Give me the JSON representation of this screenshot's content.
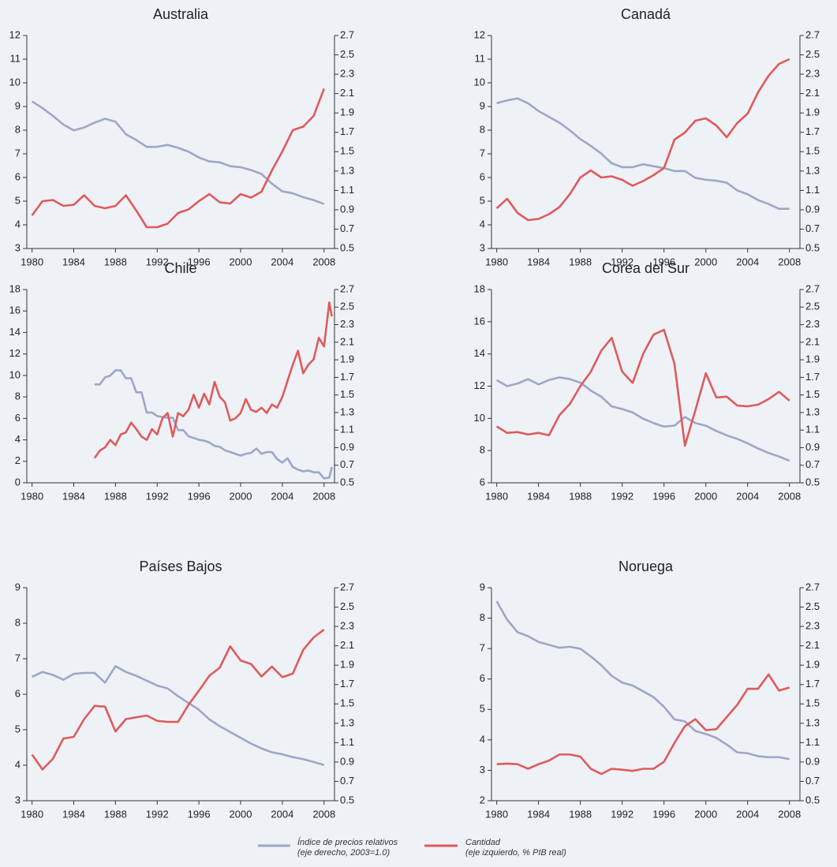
{
  "chart_data": [
    {
      "type": "line",
      "title": "Australia",
      "x": [
        1980,
        1981,
        1982,
        1983,
        1984,
        1985,
        1986,
        1987,
        1988,
        1989,
        1990,
        1991,
        1992,
        1993,
        1994,
        1995,
        1996,
        1997,
        1998,
        1999,
        2000,
        2001,
        2002,
        2003,
        2004,
        2005,
        2006,
        2007,
        2008
      ],
      "xlim": [
        1979.5,
        2009
      ],
      "xticks": [
        1980,
        1984,
        1988,
        1992,
        1996,
        2000,
        2004,
        2008
      ],
      "ylim": [
        3,
        12
      ],
      "yticks": [
        3,
        4,
        5,
        6,
        7,
        8,
        9,
        10,
        11,
        12
      ],
      "y2lim": [
        0.5,
        2.7
      ],
      "y2ticks": [
        0.5,
        0.7,
        0.9,
        1.1,
        1.3,
        1.5,
        1.7,
        1.9,
        2.1,
        2.3,
        2.5,
        2.7
      ],
      "series": [
        {
          "color": "#9ea6c6",
          "axis": "y2",
          "values": [
            2.02,
            1.95,
            1.87,
            1.78,
            1.72,
            1.75,
            1.8,
            1.84,
            1.81,
            1.68,
            1.62,
            1.55,
            1.55,
            1.57,
            1.54,
            1.5,
            1.44,
            1.4,
            1.39,
            1.35,
            1.34,
            1.31,
            1.27,
            1.17,
            1.09,
            1.07,
            1.03,
            1.0,
            0.96
          ]
        },
        {
          "color": "#e05a5c",
          "values": [
            4.4,
            5.0,
            5.05,
            4.8,
            4.85,
            5.25,
            4.8,
            4.7,
            4.8,
            5.25,
            4.6,
            3.9,
            3.9,
            4.05,
            4.5,
            4.65,
            5.0,
            5.3,
            4.95,
            4.9,
            5.3,
            5.15,
            5.4,
            6.3,
            7.1,
            8.0,
            8.15,
            8.6,
            9.75
          ]
        }
      ]
    },
    {
      "type": "line",
      "title": "Canadá",
      "x": [
        1980,
        1981,
        1982,
        1983,
        1984,
        1985,
        1986,
        1987,
        1988,
        1989,
        1990,
        1991,
        1992,
        1993,
        1994,
        1995,
        1996,
        1997,
        1998,
        1999,
        2000,
        2001,
        2002,
        2003,
        2004,
        2005,
        2006,
        2007,
        2008
      ],
      "xlim": [
        1979.5,
        2009
      ],
      "xticks": [
        1980,
        1984,
        1988,
        1992,
        1996,
        2000,
        2004,
        2008
      ],
      "ylim": [
        3,
        12
      ],
      "yticks": [
        3,
        4,
        5,
        6,
        7,
        8,
        9,
        10,
        11,
        12
      ],
      "y2lim": [
        0.5,
        2.7
      ],
      "y2ticks": [
        0.5,
        0.7,
        0.9,
        1.1,
        1.3,
        1.5,
        1.7,
        1.9,
        2.1,
        2.3,
        2.5,
        2.7
      ],
      "series": [
        {
          "color": "#9ea6c6",
          "axis": "y2",
          "values": [
            2.0,
            2.03,
            2.05,
            2.0,
            1.92,
            1.86,
            1.8,
            1.72,
            1.63,
            1.56,
            1.48,
            1.38,
            1.34,
            1.34,
            1.37,
            1.35,
            1.33,
            1.3,
            1.3,
            1.23,
            1.21,
            1.2,
            1.18,
            1.1,
            1.06,
            1.0,
            0.96,
            0.91,
            0.91
          ]
        },
        {
          "color": "#e05a5c",
          "values": [
            4.7,
            5.1,
            4.5,
            4.2,
            4.25,
            4.45,
            4.75,
            5.3,
            6.0,
            6.3,
            6.0,
            6.05,
            5.9,
            5.65,
            5.85,
            6.1,
            6.4,
            7.6,
            7.9,
            8.4,
            8.5,
            8.2,
            7.7,
            8.3,
            8.7,
            9.6,
            10.3,
            10.8,
            11.0
          ]
        }
      ]
    },
    {
      "type": "line",
      "title": "Chile",
      "x": [
        1986,
        1986.5,
        1987,
        1987.5,
        1988,
        1988.5,
        1989,
        1989.5,
        1990,
        1990.5,
        1991,
        1991.5,
        1992,
        1992.5,
        1993,
        1993.5,
        1994,
        1994.5,
        1995,
        1995.5,
        1996,
        1996.5,
        1997,
        1997.5,
        1998,
        1998.5,
        1999,
        1999.5,
        2000,
        2000.5,
        2001,
        2001.5,
        2002,
        2002.5,
        2003,
        2003.5,
        2004,
        2004.5,
        2005,
        2005.5,
        2006,
        2006.5,
        2007,
        2007.5,
        2008,
        2008.5,
        2008.75
      ],
      "xlim": [
        1979.5,
        2009
      ],
      "xticks": [
        1980,
        1984,
        1988,
        1992,
        1996,
        2000,
        2004,
        2008
      ],
      "ylim": [
        0,
        18
      ],
      "yticks": [
        0,
        2,
        4,
        6,
        8,
        10,
        12,
        14,
        16,
        18
      ],
      "y2lim": [
        0.5,
        2.7
      ],
      "y2ticks": [
        0.5,
        0.7,
        0.9,
        1.1,
        1.3,
        1.5,
        1.7,
        1.9,
        2.1,
        2.3,
        2.5,
        2.7
      ],
      "series": [
        {
          "color": "#9ea6c6",
          "axis": "y2",
          "values": [
            1.62,
            1.62,
            1.7,
            1.72,
            1.78,
            1.78,
            1.69,
            1.69,
            1.53,
            1.53,
            1.3,
            1.3,
            1.26,
            1.25,
            1.24,
            1.24,
            1.1,
            1.1,
            1.03,
            1.01,
            0.99,
            0.98,
            0.96,
            0.92,
            0.91,
            0.87,
            0.85,
            0.83,
            0.81,
            0.83,
            0.84,
            0.89,
            0.83,
            0.85,
            0.85,
            0.77,
            0.73,
            0.78,
            0.68,
            0.65,
            0.63,
            0.64,
            0.62,
            0.62,
            0.55,
            0.56,
            0.68
          ]
        },
        {
          "color": "#e05a5c",
          "values": [
            2.3,
            3.0,
            3.3,
            4.0,
            3.5,
            4.5,
            4.7,
            5.6,
            5.0,
            4.3,
            4.0,
            5.0,
            4.5,
            6.0,
            6.5,
            4.3,
            6.5,
            6.2,
            6.8,
            8.2,
            7.0,
            8.3,
            7.3,
            9.4,
            8.0,
            7.5,
            5.8,
            6.0,
            6.5,
            7.8,
            6.8,
            6.6,
            7.0,
            6.5,
            7.3,
            7.0,
            8.0,
            9.5,
            11.0,
            12.3,
            10.2,
            11.0,
            11.5,
            13.5,
            12.7,
            16.8,
            15.5
          ]
        }
      ]
    },
    {
      "type": "line",
      "title": "Corea del Sur",
      "x": [
        1980,
        1981,
        1982,
        1983,
        1984,
        1985,
        1986,
        1987,
        1988,
        1989,
        1990,
        1991,
        1992,
        1993,
        1994,
        1995,
        1996,
        1997,
        1998,
        1999,
        2000,
        2001,
        2002,
        2003,
        2004,
        2005,
        2006,
        2007,
        2008
      ],
      "xlim": [
        1979.5,
        2009
      ],
      "xticks": [
        1980,
        1984,
        1988,
        1992,
        1996,
        2000,
        2004,
        2008
      ],
      "ylim": [
        6,
        18
      ],
      "yticks": [
        6,
        8,
        10,
        12,
        14,
        16,
        18
      ],
      "y2lim": [
        0.5,
        2.7
      ],
      "y2ticks": [
        0.5,
        0.7,
        0.9,
        1.1,
        1.3,
        1.5,
        1.7,
        1.9,
        2.1,
        2.3,
        2.5,
        2.7
      ],
      "series": [
        {
          "color": "#9ea6c6",
          "axis": "y2",
          "values": [
            1.67,
            1.6,
            1.63,
            1.68,
            1.62,
            1.67,
            1.7,
            1.68,
            1.64,
            1.55,
            1.48,
            1.37,
            1.34,
            1.3,
            1.23,
            1.18,
            1.14,
            1.15,
            1.25,
            1.18,
            1.15,
            1.09,
            1.04,
            1.0,
            0.95,
            0.89,
            0.84,
            0.8,
            0.75
          ]
        },
        {
          "color": "#e05a5c",
          "values": [
            9.5,
            9.1,
            9.15,
            9.0,
            9.1,
            8.95,
            10.2,
            10.9,
            12.0,
            12.9,
            14.2,
            15.0,
            12.9,
            12.2,
            14.0,
            15.2,
            15.5,
            13.4,
            8.3,
            10.5,
            12.8,
            11.3,
            11.35,
            10.8,
            10.75,
            10.85,
            11.2,
            11.65,
            11.1
          ]
        }
      ]
    },
    {
      "type": "line",
      "title": "Países Bajos",
      "x": [
        1980,
        1981,
        1982,
        1983,
        1984,
        1985,
        1986,
        1987,
        1988,
        1989,
        1990,
        1991,
        1992,
        1993,
        1994,
        1995,
        1996,
        1997,
        1998,
        1999,
        2000,
        2001,
        2002,
        2003,
        2004,
        2005,
        2006,
        2007,
        2008
      ],
      "xlim": [
        1979.5,
        2009
      ],
      "xticks": [
        1980,
        1984,
        1988,
        1992,
        1996,
        2000,
        2004,
        2008
      ],
      "ylim": [
        3,
        9
      ],
      "yticks": [
        3,
        4,
        5,
        6,
        7,
        8,
        9
      ],
      "y2lim": [
        0.5,
        2.7
      ],
      "y2ticks": [
        0.5,
        0.7,
        0.9,
        1.1,
        1.3,
        1.5,
        1.7,
        1.9,
        2.1,
        2.3,
        2.5,
        2.7
      ],
      "series": [
        {
          "color": "#9ea6c6",
          "axis": "y2",
          "values": [
            1.78,
            1.83,
            1.8,
            1.75,
            1.81,
            1.82,
            1.82,
            1.72,
            1.89,
            1.83,
            1.79,
            1.74,
            1.69,
            1.66,
            1.58,
            1.51,
            1.44,
            1.34,
            1.27,
            1.21,
            1.15,
            1.09,
            1.04,
            1.0,
            0.98,
            0.95,
            0.93,
            0.9,
            0.87
          ]
        },
        {
          "color": "#e05a5c",
          "values": [
            4.3,
            3.88,
            4.18,
            4.75,
            4.8,
            5.3,
            5.67,
            5.65,
            4.95,
            5.3,
            5.35,
            5.4,
            5.25,
            5.22,
            5.22,
            5.7,
            6.1,
            6.52,
            6.75,
            7.35,
            6.95,
            6.85,
            6.5,
            6.78,
            6.48,
            6.58,
            7.25,
            7.6,
            7.82
          ]
        }
      ]
    },
    {
      "type": "line",
      "title": "Noruega",
      "x": [
        1980,
        1981,
        1982,
        1983,
        1984,
        1985,
        1986,
        1987,
        1988,
        1989,
        1990,
        1991,
        1992,
        1993,
        1994,
        1995,
        1996,
        1997,
        1998,
        1999,
        2000,
        2001,
        2002,
        2003,
        2004,
        2005,
        2006,
        2007,
        2008
      ],
      "xlim": [
        1979.5,
        2009
      ],
      "xticks": [
        1980,
        1984,
        1988,
        1992,
        1996,
        2000,
        2004,
        2008
      ],
      "ylim": [
        2,
        9
      ],
      "yticks": [
        2,
        3,
        4,
        5,
        6,
        7,
        8,
        9
      ],
      "y2lim": [
        0.5,
        2.7
      ],
      "y2ticks": [
        0.5,
        0.7,
        0.9,
        1.1,
        1.3,
        1.5,
        1.7,
        1.9,
        2.1,
        2.3,
        2.5,
        2.7
      ],
      "series": [
        {
          "color": "#9ea6c6",
          "axis": "y2",
          "values": [
            2.56,
            2.37,
            2.24,
            2.2,
            2.14,
            2.11,
            2.08,
            2.09,
            2.07,
            1.99,
            1.9,
            1.79,
            1.72,
            1.69,
            1.63,
            1.57,
            1.47,
            1.34,
            1.32,
            1.22,
            1.19,
            1.15,
            1.08,
            1.0,
            0.99,
            0.96,
            0.95,
            0.95,
            0.93
          ]
        },
        {
          "color": "#e05a5c",
          "values": [
            3.2,
            3.22,
            3.2,
            3.05,
            3.2,
            3.32,
            3.52,
            3.52,
            3.45,
            3.05,
            2.88,
            3.05,
            3.02,
            2.98,
            3.05,
            3.05,
            3.28,
            3.9,
            4.45,
            4.68,
            4.32,
            4.35,
            4.75,
            5.15,
            5.68,
            5.68,
            6.15,
            5.62,
            5.72
          ]
        }
      ]
    }
  ],
  "legend": [
    {
      "name": "Índice de precios relativos",
      "detail": "(eje derecho, 2003=1.0)",
      "color": "#9ea6c6"
    },
    {
      "name": "Cantidad",
      "detail": "(eje izquierdo, % PIB real)",
      "color": "#e05a5c"
    }
  ]
}
